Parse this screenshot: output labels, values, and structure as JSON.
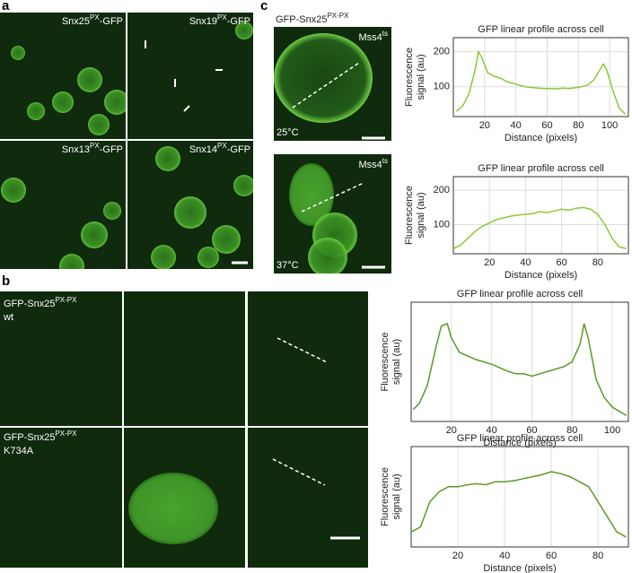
{
  "panels": {
    "a": {
      "letter": "a",
      "images": [
        {
          "base": "Snx25",
          "sup": "PX",
          "rest": "-GFP"
        },
        {
          "base": "Snx19",
          "sup": "PX",
          "rest": "-GFP"
        },
        {
          "base": "Snx13",
          "sup": "PX",
          "rest": "-GFP"
        },
        {
          "base": "Snx14",
          "sup": "PX",
          "rest": "-GFP"
        }
      ]
    },
    "b": {
      "letter": "b",
      "wt": {
        "base": "GFP-Snx25",
        "sup": "PX-PX",
        "line2": "wt"
      },
      "mutant": {
        "base": "GFP-Snx25",
        "sup": "PX-PX",
        "line2": "K734A"
      }
    },
    "c": {
      "letter": "c",
      "construct": {
        "base": "GFP-Snx25",
        "sup": "PX-PX"
      },
      "strain": [
        {
          "base": "Mss4",
          "sup": "ts"
        },
        {
          "base": "Mss4",
          "sup": "ts"
        }
      ],
      "temps": [
        "25°C",
        "37°C"
      ]
    }
  },
  "chart_data": [
    {
      "type": "line",
      "title": "GFP linear profile across cell",
      "xlabel": "Distance (pixels)",
      "ylabel_lines": [
        "Fluorescence",
        "signal (au)"
      ],
      "x": [
        2,
        6,
        10,
        14,
        16,
        18,
        22,
        26,
        30,
        34,
        38,
        42,
        46,
        50,
        54,
        58,
        62,
        66,
        70,
        74,
        78,
        82,
        86,
        90,
        94,
        96,
        98,
        102,
        106,
        110
      ],
      "series": [
        {
          "color": "#8cc83c",
          "values": [
            30,
            45,
            80,
            150,
            200,
            185,
            140,
            130,
            125,
            115,
            110,
            105,
            100,
            98,
            96,
            95,
            95,
            94,
            96,
            95,
            97,
            100,
            105,
            120,
            150,
            165,
            150,
            90,
            40,
            22
          ]
        }
      ],
      "xlim": [
        0,
        112
      ],
      "ylim": [
        15,
        240
      ],
      "xticks": [
        20,
        40,
        60,
        80,
        100
      ],
      "yticks": [
        100,
        200
      ],
      "grid": true
    },
    {
      "type": "line",
      "title": "GFP linear profile across cell",
      "xlabel": "Distance (pixels)",
      "ylabel_lines": [
        "Fluorescence",
        "signal (au)"
      ],
      "x": [
        0,
        4,
        8,
        12,
        16,
        20,
        24,
        28,
        32,
        36,
        40,
        44,
        48,
        52,
        56,
        60,
        64,
        68,
        72,
        76,
        80,
        84,
        88,
        92,
        96
      ],
      "series": [
        {
          "color": "#8cc83c",
          "values": [
            30,
            40,
            60,
            80,
            95,
            105,
            115,
            120,
            125,
            128,
            130,
            132,
            138,
            135,
            140,
            145,
            142,
            148,
            150,
            145,
            130,
            100,
            60,
            35,
            30
          ]
        }
      ],
      "xlim": [
        0,
        97
      ],
      "ylim": [
        15,
        240
      ],
      "xticks": [
        20,
        40,
        60,
        80
      ],
      "yticks": [
        100,
        200
      ],
      "grid": true
    },
    {
      "type": "line",
      "title": "GFP linear profile across cell",
      "xlabel": "Distance (pixels)",
      "ylabel_lines": [
        "Fluorescence",
        "signal (au)"
      ],
      "x": [
        1,
        4,
        8,
        12,
        15,
        18,
        20,
        24,
        28,
        32,
        36,
        40,
        44,
        48,
        52,
        56,
        60,
        64,
        68,
        72,
        76,
        80,
        84,
        86,
        88,
        92,
        96,
        100,
        104,
        107
      ],
      "series": [
        {
          "color": "#5a9a28",
          "values": [
            0.1,
            0.15,
            0.3,
            0.6,
            0.8,
            0.82,
            0.7,
            0.58,
            0.55,
            0.52,
            0.5,
            0.48,
            0.45,
            0.42,
            0.4,
            0.4,
            0.38,
            0.4,
            0.42,
            0.44,
            0.46,
            0.5,
            0.65,
            0.82,
            0.7,
            0.35,
            0.2,
            0.12,
            0.08,
            0.05
          ]
        }
      ],
      "xlim": [
        0,
        108
      ],
      "ylim": [
        0,
        1
      ],
      "xticks": [
        20,
        40,
        60,
        80,
        100
      ],
      "grid": true
    },
    {
      "type": "line",
      "title": "GFP linear profile across cell",
      "xlabel": "Distance (pixels)",
      "ylabel_lines": [
        "Fluorescence",
        "signal (au)"
      ],
      "x": [
        0,
        4,
        8,
        12,
        16,
        20,
        24,
        28,
        32,
        36,
        40,
        44,
        48,
        52,
        56,
        60,
        64,
        68,
        72,
        76,
        80,
        84,
        88,
        92
      ],
      "series": [
        {
          "color": "#5a9a28",
          "values": [
            0.15,
            0.2,
            0.45,
            0.55,
            0.6,
            0.6,
            0.62,
            0.63,
            0.62,
            0.65,
            0.65,
            0.66,
            0.68,
            0.7,
            0.72,
            0.75,
            0.73,
            0.7,
            0.65,
            0.6,
            0.45,
            0.3,
            0.15,
            0.1
          ]
        }
      ],
      "xlim": [
        0,
        93
      ],
      "ylim": [
        0,
        1
      ],
      "xticks": [
        20,
        40,
        60,
        80
      ],
      "grid": true
    }
  ]
}
